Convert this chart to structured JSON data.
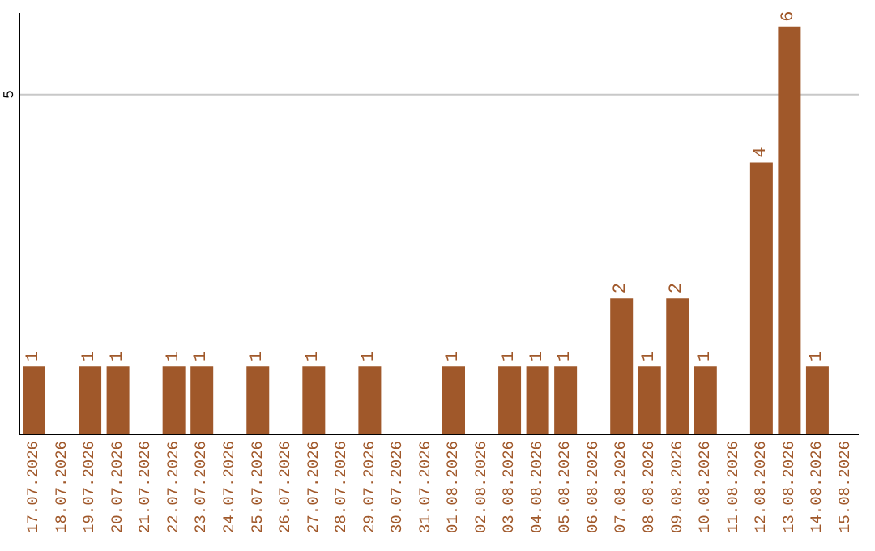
{
  "chart_data": {
    "type": "bar",
    "categories": [
      "17.07.2026",
      "18.07.2026",
      "19.07.2026",
      "20.07.2026",
      "21.07.2026",
      "22.07.2026",
      "23.07.2026",
      "24.07.2026",
      "25.07.2026",
      "26.07.2026",
      "27.07.2026",
      "28.07.2026",
      "29.07.2026",
      "30.07.2026",
      "31.07.2026",
      "01.08.2026",
      "02.08.2026",
      "03.08.2026",
      "04.08.2026",
      "05.08.2026",
      "06.08.2026",
      "07.08.2026",
      "08.08.2026",
      "09.08.2026",
      "10.08.2026",
      "11.08.2026",
      "12.08.2026",
      "13.08.2026",
      "14.08.2026",
      "15.08.2026"
    ],
    "values": [
      1,
      0,
      1,
      1,
      0,
      1,
      1,
      0,
      1,
      0,
      1,
      0,
      1,
      0,
      0,
      1,
      0,
      1,
      1,
      1,
      0,
      2,
      1,
      2,
      1,
      0,
      4,
      6,
      1,
      0
    ],
    "value_labels": [
      "1",
      null,
      "1",
      "1",
      null,
      "1",
      "1",
      null,
      "1",
      null,
      "1",
      null,
      "1",
      null,
      null,
      "1",
      null,
      "1",
      "1",
      "1",
      null,
      "2",
      "1",
      "2",
      "1",
      null,
      "4",
      "6",
      "1",
      null
    ],
    "color": "#a0582a",
    "ylim": [
      0,
      6.2
    ],
    "yticks": [
      5
    ],
    "grid": "y"
  }
}
